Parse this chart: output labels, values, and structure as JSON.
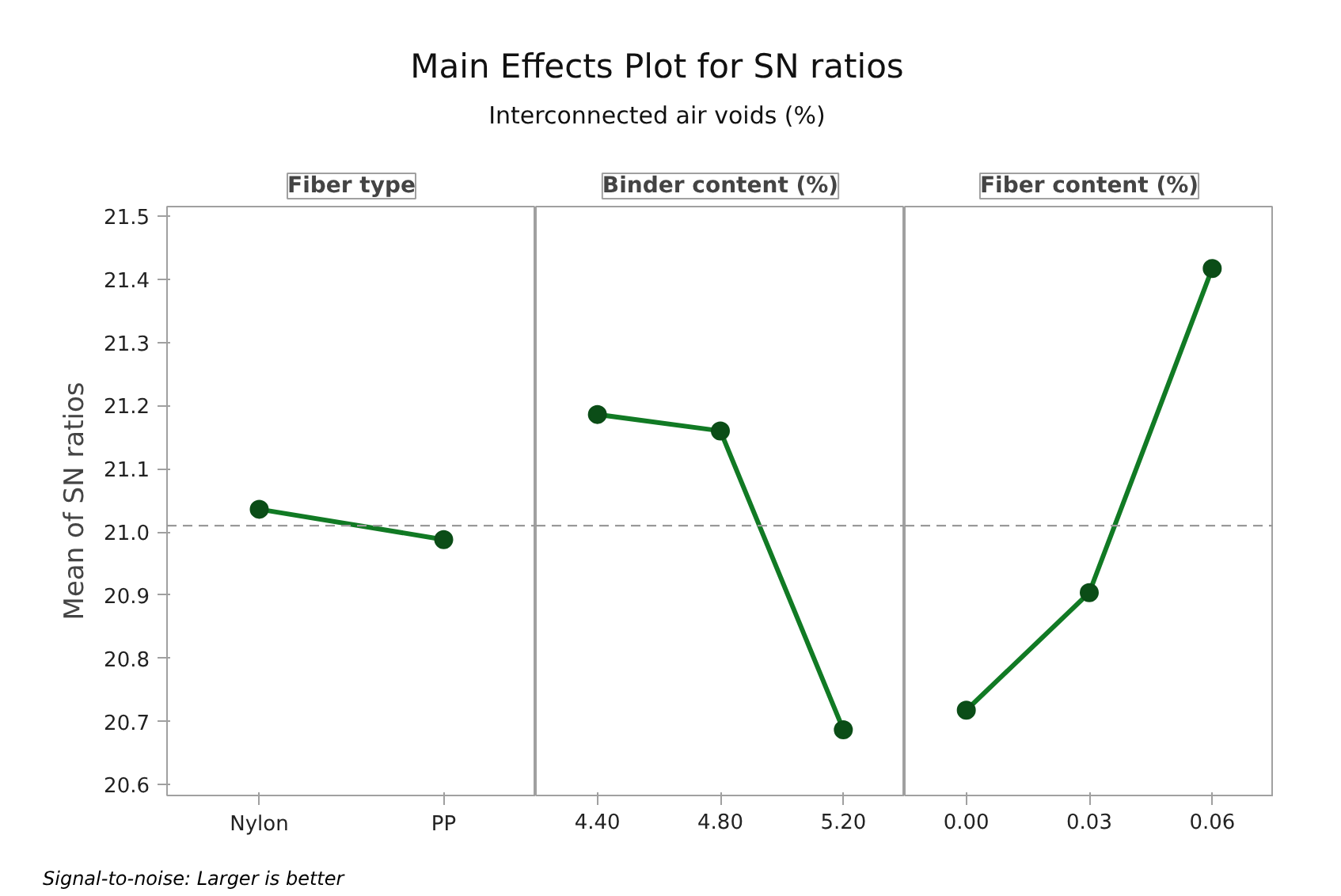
{
  "chart_data": [
    {
      "type": "other",
      "title": "Main Effects Plot for SN ratios",
      "subtitle": "Interconnected air voids (%)"
    },
    {
      "type": "line",
      "xlabel": "Fiber type",
      "ylabel": "Mean of SN ratios",
      "annotations": [
        "Signal-to-noise: Larger is better"
      ],
      "categories": [
        "Nylon",
        "PP"
      ],
      "series": [
        {
          "color": "#117a24",
          "values": [
            21.036,
            20.988
          ]
        }
      ],
      "ylim": [
        20.583,
        21.515
      ],
      "yticks": [
        20.6,
        20.7,
        20.8,
        20.9,
        {
          "value": 21.0,
          "label": "21.0"
        },
        21.1,
        21.2,
        21.3,
        21.4,
        21.5
      ],
      "ref_lines": [
        {
          "axis": "y",
          "value": 21.01,
          "color": "#999999",
          "line_style": "dashed"
        }
      ],
      "marker": "circle"
    },
    {
      "type": "line",
      "xlabel": "Binder content (%)",
      "categories": [
        "4.40",
        "4.80",
        "5.20"
      ],
      "series": [
        {
          "color": "#117a24",
          "values": [
            21.186,
            21.16,
            20.687
          ]
        }
      ],
      "ylim": [
        20.583,
        21.515
      ],
      "tick_labels": "x",
      "ref_lines": [
        {
          "axis": "y",
          "value": 21.01,
          "color": "#999999",
          "line_style": "dashed"
        }
      ],
      "marker": "circle"
    },
    {
      "type": "line",
      "xlabel": "Fiber content (%)",
      "categories": [
        "0.00",
        "0.03",
        "0.06"
      ],
      "series": [
        {
          "color": "#117a24",
          "values": [
            20.718,
            20.904,
            21.417
          ]
        }
      ],
      "ylim": [
        20.583,
        21.515
      ],
      "tick_labels": "x",
      "ref_lines": [
        {
          "axis": "y",
          "value": 21.01,
          "color": "#999999",
          "line_style": "dashed"
        }
      ],
      "marker": "circle"
    }
  ]
}
